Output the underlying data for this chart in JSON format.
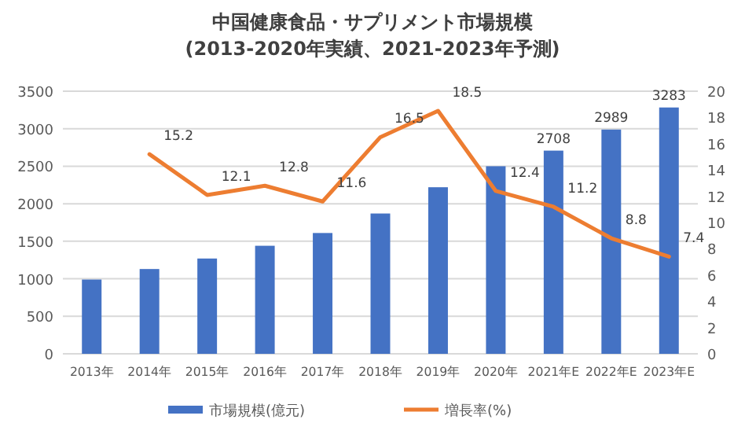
{
  "chart_data": {
    "type": "bar",
    "title": "中国健康食品・サプリメント市場規模",
    "subtitle": "(2013-2020年実績、2021-2023年予測)",
    "categories": [
      "2013年",
      "2014年",
      "2015年",
      "2016年",
      "2017年",
      "2018年",
      "2019年",
      "2020年",
      "2021年E",
      "2022年E",
      "2023年E"
    ],
    "series": [
      {
        "name": "市場規模(億元)",
        "color": "#4472c4",
        "values": [
          990,
          1130,
          1270,
          1440,
          1610,
          1870,
          2220,
          2500,
          2708,
          2989,
          3283
        ],
        "value_labels": [
          null,
          null,
          null,
          null,
          null,
          null,
          null,
          null,
          "2708",
          "2989",
          "3283"
        ]
      },
      {
        "name": "増長率(%)",
        "type": "line",
        "axis": "y2",
        "color": "#ed7d31",
        "values": [
          null,
          15.2,
          12.1,
          12.8,
          11.6,
          16.5,
          18.5,
          12.4,
          11.2,
          8.8,
          7.4
        ],
        "value_labels": [
          null,
          "15.2",
          "12.1",
          "12.8",
          "11.6",
          "16.5",
          "18.5",
          "12.4",
          "11.2",
          "8.8",
          "7.4"
        ],
        "marker": "none"
      }
    ],
    "ylim": [
      0,
      3500
    ],
    "yticks": [
      0,
      500,
      1000,
      1500,
      2000,
      2500,
      3000,
      3500
    ],
    "y2lim": [
      0,
      20
    ],
    "y2ticks": [
      0,
      2,
      4,
      6,
      8,
      10,
      12,
      14,
      16,
      18,
      20
    ],
    "grid": "y",
    "legend": "bottom",
    "line_style": "solid"
  }
}
